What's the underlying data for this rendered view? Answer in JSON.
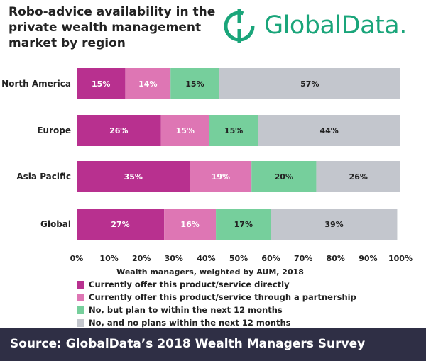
{
  "title": "Robo-advice availability in the private wealth management market by region",
  "logo": {
    "text": "GlobalData.",
    "icon": "globaldata-logo-icon"
  },
  "colors": {
    "direct": "#b8308f",
    "partnership": "#de76b4",
    "plan": "#76cf9c",
    "no_plan": "#c3c6cd",
    "brand": "#1aa57a",
    "footer_bg": "#2f2f45"
  },
  "chart_data": {
    "type": "bar",
    "orientation": "horizontal",
    "stacked": true,
    "categories": [
      "North America",
      "Europe",
      "Asia Pacific",
      "Global"
    ],
    "series": [
      {
        "name": "Currently offer this product/service directly",
        "values": [
          15,
          26,
          35,
          27
        ],
        "color_key": "direct"
      },
      {
        "name": "Currently offer this product/service through a partnership",
        "values": [
          14,
          15,
          19,
          16
        ],
        "color_key": "partnership"
      },
      {
        "name": "No, but plan to within the next 12 months",
        "values": [
          15,
          15,
          20,
          17
        ],
        "color_key": "plan"
      },
      {
        "name": "No, and no plans within the next 12 months",
        "values": [
          57,
          44,
          26,
          39
        ],
        "color_key": "no_plan"
      }
    ],
    "data_labels": [
      [
        "15%",
        "14%",
        "15%",
        "57%"
      ],
      [
        "26%",
        "15%",
        "15%",
        "44%"
      ],
      [
        "35%",
        "19%",
        "20%",
        "26%"
      ],
      [
        "27%",
        "16%",
        "17%",
        "39%"
      ]
    ],
    "xticks": [
      "0%",
      "10%",
      "20%",
      "30%",
      "40%",
      "50%",
      "60%",
      "70%",
      "80%",
      "90%",
      "100%"
    ],
    "xlim": [
      0,
      100
    ],
    "xlabel": "Wealth managers, weighted by AUM, 2018",
    "ylabel": "",
    "grid": false,
    "legend_position": "bottom"
  },
  "footer": {
    "text": "Source: GlobalData’s 2018 Wealth Managers Survey"
  }
}
